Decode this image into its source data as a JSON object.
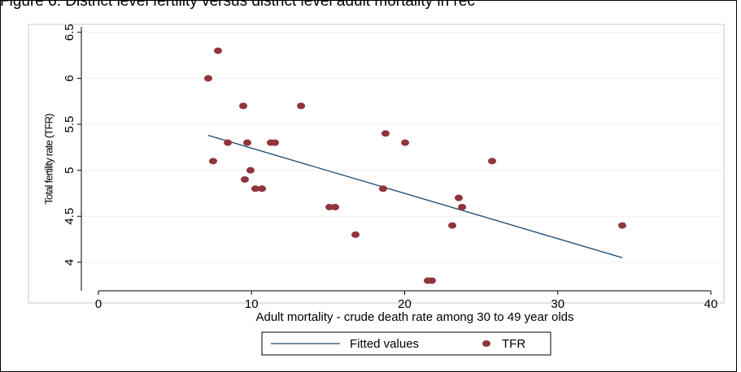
{
  "chart_data": {
    "type": "scatter",
    "title": "Figure 6: District level fertility versus district level adult mortality in rec",
    "x_label": "Adult mortality - crude death rate among 30 to 49 year olds",
    "y_label": "Total fertility rate (TFR)",
    "xlim": [
      0,
      40
    ],
    "xticks": [
      0,
      10,
      20,
      30,
      40
    ],
    "ylim": [
      3.69,
      6.56
    ],
    "yticks": [
      4,
      4.5,
      5,
      5.5,
      6,
      6.5
    ],
    "grid": true,
    "series": [
      {
        "name": "Fitted values",
        "color": "#1a476f",
        "mode": "line",
        "x": [
          7.17,
          34.21
        ],
        "values": [
          5.38,
          4.05
        ]
      },
      {
        "name": "TFR",
        "color": "#90353b",
        "mode": "markers",
        "x": [
          7.17,
          7.81,
          9.46,
          13.23,
          8.45,
          9.72,
          11.26,
          11.53,
          20.03,
          18.75,
          7.49,
          25.71,
          9.93,
          9.56,
          10.25,
          10.68,
          18.59,
          23.53,
          15.09,
          15.46,
          23.75,
          23.11,
          34.21,
          16.79,
          21.51,
          21.78
        ],
        "values": [
          6.0,
          6.3,
          5.7,
          5.7,
          5.3,
          5.3,
          5.3,
          5.3,
          5.3,
          5.4,
          5.1,
          5.1,
          5.0,
          4.9,
          4.8,
          4.8,
          4.8,
          4.7,
          4.6,
          4.6,
          4.6,
          4.4,
          4.4,
          4.3,
          3.8,
          3.8
        ]
      }
    ]
  }
}
